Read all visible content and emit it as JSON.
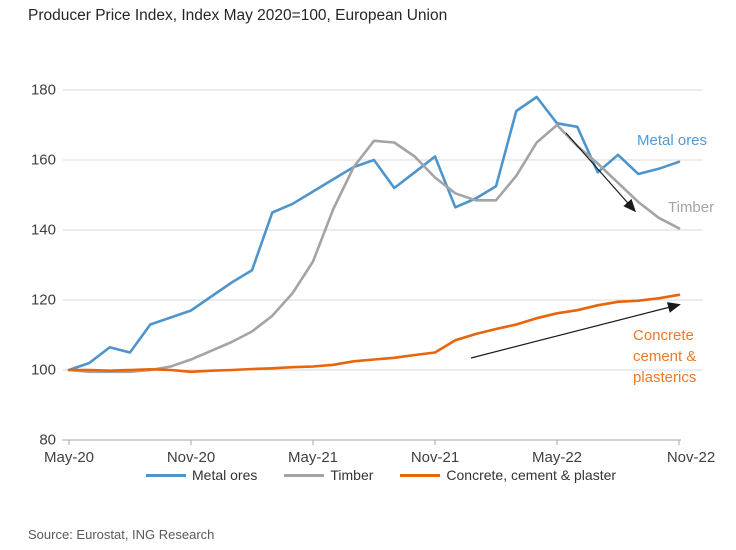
{
  "title": "Producer Price Index, Index May 2020=100, European Union",
  "source": "Source: Eurostat, ING Research",
  "colors": {
    "metal_ores": "#4E95CD",
    "timber": "#A2A4A6",
    "concrete": "#E8650C",
    "annotation_metal": "#4E9BD5",
    "annotation_timber": "#A2A4A6",
    "annotation_concrete": "#EC7A28",
    "grid": "#D9D9D9",
    "axis": "#A6A6A6",
    "arrow": "#1A1A1A",
    "title_text": "#262626",
    "tick_text": "#404040",
    "legend_text": "#333333",
    "source_text": "#595959"
  },
  "annotations": {
    "metal_ores": "Metal ores",
    "timber": "Timber",
    "concrete_lines": [
      "Concrete",
      "cement &",
      "plasterics"
    ]
  },
  "legend": [
    {
      "label": "Metal ores",
      "color_key": "metal_ores"
    },
    {
      "label": "Timber",
      "color_key": "timber"
    },
    {
      "label": "Concrete, cement & plaster",
      "color_key": "concrete"
    }
  ],
  "chart_data": {
    "type": "line",
    "title": "Producer Price Index, Index May 2020=100, European Union",
    "x": [
      "May-20",
      "Jun-20",
      "Jul-20",
      "Aug-20",
      "Sep-20",
      "Oct-20",
      "Nov-20",
      "Dec-20",
      "Jan-21",
      "Feb-21",
      "Mar-21",
      "Apr-21",
      "May-21",
      "Jun-21",
      "Jul-21",
      "Aug-21",
      "Sep-21",
      "Oct-21",
      "Nov-21",
      "Dec-21",
      "Jan-22",
      "Feb-22",
      "Mar-22",
      "Apr-22",
      "May-22",
      "Jun-22",
      "Jul-22",
      "Aug-22",
      "Sep-22",
      "Oct-22",
      "Nov-22"
    ],
    "series": [
      {
        "name": "Metal ores",
        "color_key": "metal_ores",
        "values": [
          100,
          102,
          106.5,
          105,
          113,
          115,
          117,
          121,
          125,
          128.5,
          145,
          147.5,
          151,
          154.5,
          158,
          160,
          152,
          156.5,
          161,
          146.5,
          149,
          152.5,
          174,
          178,
          170.5,
          169.5,
          156.5,
          161.5,
          156,
          157.5,
          159.5
        ]
      },
      {
        "name": "Timber",
        "color_key": "timber",
        "values": [
          100,
          99.5,
          99.5,
          99.5,
          100,
          101,
          103,
          105.5,
          108,
          111,
          115.5,
          122,
          131,
          146,
          158,
          165.5,
          165,
          161,
          155,
          150.5,
          148.5,
          148.5,
          155.5,
          165,
          170,
          164,
          159,
          153.5,
          148,
          143.5,
          140.5
        ]
      },
      {
        "name": "Concrete, cement & plaster",
        "color_key": "concrete",
        "values": [
          100,
          100,
          99.8,
          100,
          100.2,
          100,
          99.5,
          99.8,
          100,
          100.3,
          100.5,
          100.8,
          101,
          101.5,
          102.5,
          103,
          103.5,
          104.3,
          105,
          108.5,
          110.3,
          111.7,
          113,
          114.8,
          116.2,
          117.1,
          118.5,
          119.5,
          119.8,
          120.5,
          121.5
        ]
      }
    ],
    "ylim": [
      80,
      185
    ],
    "yticks": [
      180,
      160,
      140,
      120,
      100,
      80
    ],
    "xtick_labels": [
      "May-20",
      "Nov-20",
      "May-21",
      "Nov-21",
      "May-22",
      "Nov-22"
    ],
    "xtick_indices": [
      0,
      6,
      12,
      18,
      24,
      30
    ],
    "grid": "horizontal",
    "legend_position": "bottom"
  }
}
